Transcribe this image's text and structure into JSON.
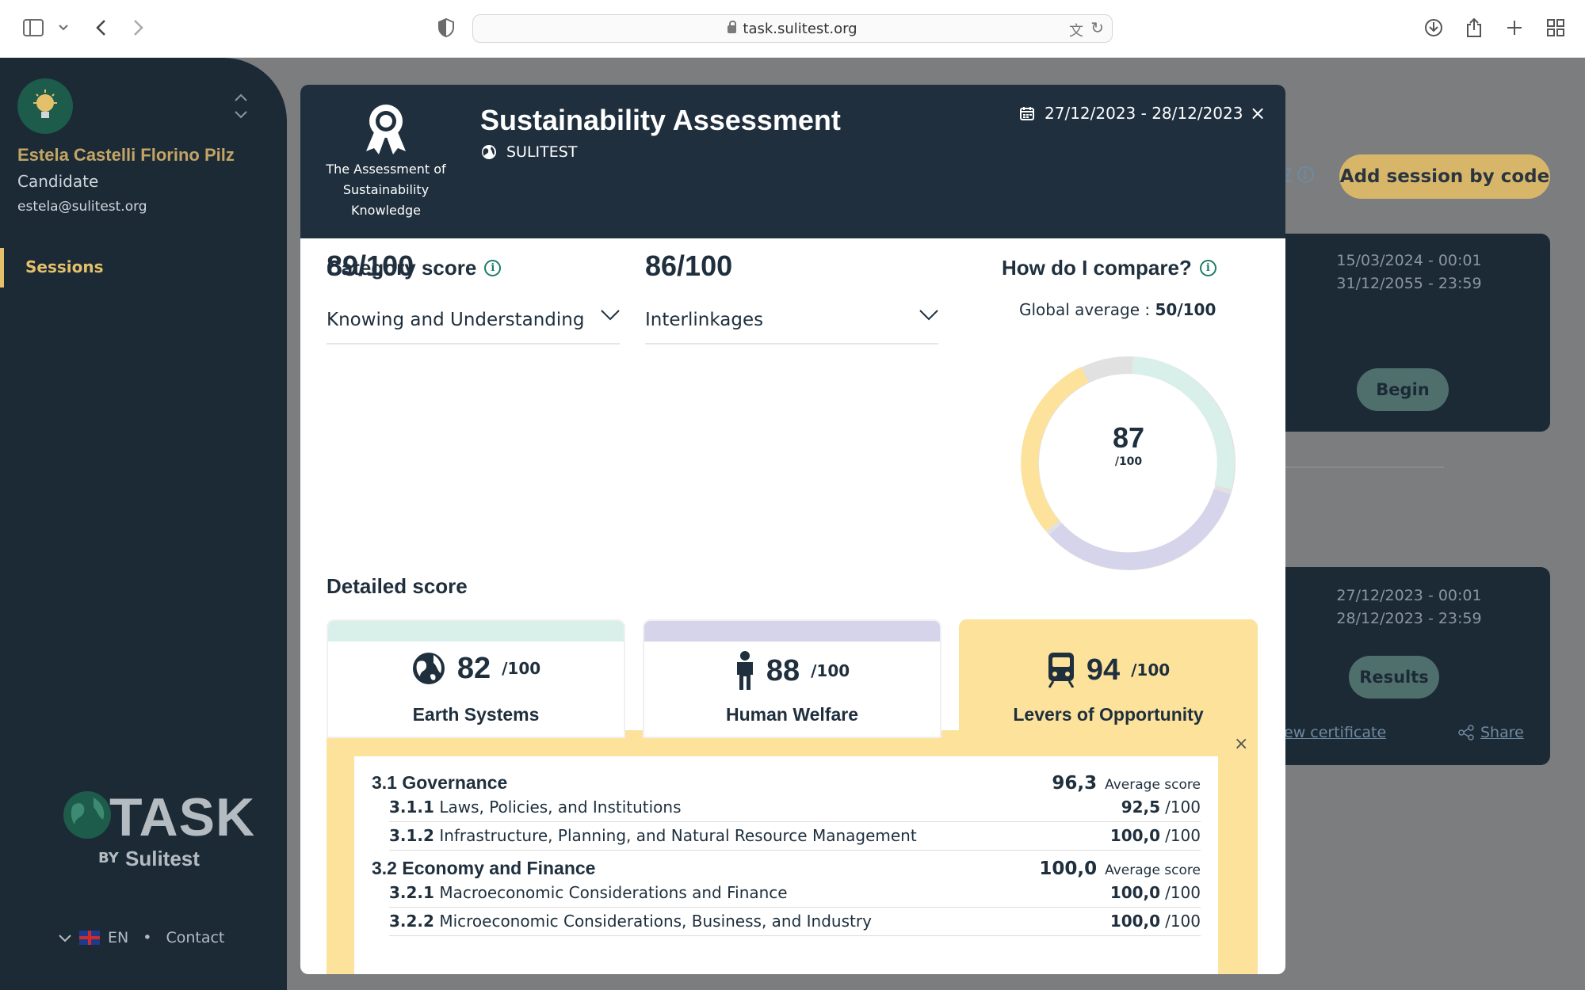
{
  "browser": {
    "url": "task.sulitest.org"
  },
  "sidebar": {
    "user_name": "Estela Castelli Florino Pilz",
    "role": "Candidate",
    "email": "estela@sulitest.org",
    "nav": [
      {
        "label": "Sessions",
        "active": true
      }
    ],
    "logo": {
      "task": "TASK",
      "by": "BY",
      "brand": "Sulitest"
    },
    "footer": {
      "language": "EN",
      "separator": "•",
      "contact": "Contact"
    }
  },
  "background": {
    "help_suffix": "?",
    "add_session_label": "Add session by code",
    "card1": {
      "start": "15/03/2024 - 00:01",
      "end": "31/12/2055 - 23:59",
      "button": "Begin"
    },
    "card2": {
      "start": "27/12/2023 - 00:01",
      "end": "28/12/2023 - 23:59",
      "button": "Results",
      "certificate_link": "ew certificate",
      "share_link": "Share"
    }
  },
  "modal": {
    "badge_caption": [
      "The Assessment of",
      "Sustainability",
      "Knowledge"
    ],
    "title": "Sustainability Assessment",
    "organization": "SULITEST",
    "date_range": "27/12/2023 - 28/12/2023",
    "close": "×",
    "category_score": {
      "title": "Category score",
      "items": [
        {
          "score": "89/100",
          "label": "Knowing and Understanding"
        },
        {
          "score": "86/100",
          "label": "Interlinkages"
        }
      ]
    },
    "compare": {
      "title": "How do I compare?",
      "global_average_label": "Global average : ",
      "global_average_value": "50/100",
      "score": "87",
      "denominator": "/100",
      "segments": [
        {
          "name": "Earth Systems",
          "color": "#d9efea"
        },
        {
          "name": "Human Welfare",
          "color": "#d6d4ea"
        },
        {
          "name": "Levers of Opportunity",
          "color": "#fde29c"
        },
        {
          "name": "remainder",
          "color": "#e1e1e1"
        }
      ]
    },
    "detailed_score": {
      "title": "Detailed score",
      "tiles": [
        {
          "score": "82",
          "suffix": "/100",
          "label": "Earth Systems",
          "icon": "globe-icon",
          "color": "#d9efea"
        },
        {
          "score": "88",
          "suffix": "/100",
          "label": "Human Welfare",
          "icon": "person-icon",
          "color": "#d6d4ea"
        },
        {
          "score": "94",
          "suffix": "/100",
          "label": "Levers of Opportunity",
          "icon": "train-icon",
          "color": "#fde29c",
          "selected": true
        }
      ],
      "breakdown": [
        {
          "title": "3.1 Governance",
          "score": "96,3",
          "unit": "Average score",
          "items": [
            {
              "code": "3.1.1",
              "name": "Laws, Policies, and Institutions",
              "score": "92,5",
              "unit": "/100"
            },
            {
              "code": "3.1.2",
              "name": "Infrastructure, Planning, and Natural Resource Management",
              "score": "100,0",
              "unit": "/100"
            }
          ]
        },
        {
          "title": "3.2 Economy and Finance",
          "score": "100,0",
          "unit": "Average score",
          "items": [
            {
              "code": "3.2.1",
              "name": "Macroeconomic Considerations and Finance",
              "score": "100,0",
              "unit": "/100"
            },
            {
              "code": "3.2.2",
              "name": "Microeconomic Considerations, Business, and Industry",
              "score": "100,0",
              "unit": "/100"
            }
          ]
        }
      ]
    }
  }
}
